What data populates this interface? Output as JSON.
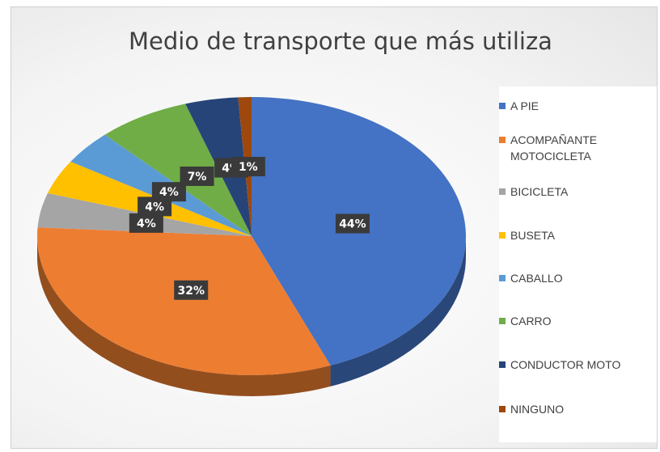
{
  "chart_data": {
    "type": "pie",
    "title": "Medio de transporte que más utiliza",
    "categories": [
      "A PIE",
      "ACOMPAÑANTE MOTOCICLETA",
      "BICICLETA",
      "BUSETA",
      "CABALLO",
      "CARRO",
      "CONDUCTOR MOTO",
      "NINGUNO"
    ],
    "values": [
      44,
      32,
      4,
      4,
      4,
      7,
      4,
      1
    ],
    "value_labels": [
      "44%",
      "32%",
      "4%",
      "4%",
      "4%",
      "7%",
      "4%",
      "1%"
    ],
    "colors": [
      "#4472c4",
      "#ed7d31",
      "#a5a5a5",
      "#ffc000",
      "#5b9bd5",
      "#70ad47",
      "#264478",
      "#9e480e"
    ],
    "legend": "right"
  }
}
